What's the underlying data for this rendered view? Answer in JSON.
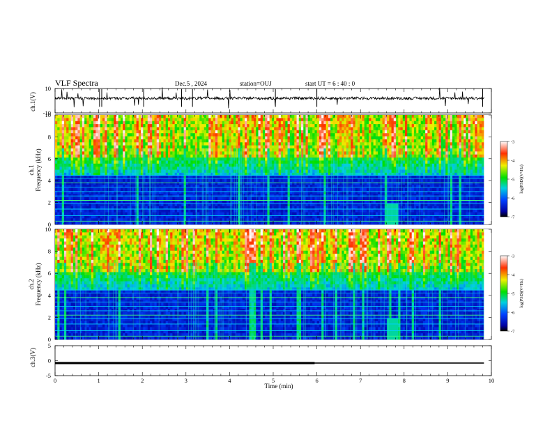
{
  "header": {
    "title": "VLF Spectra",
    "date": "Dec.5 , 2024",
    "station": "station=OUJ",
    "start": "start  UT  =  6 : 40 : 0"
  },
  "chart_data": [
    {
      "type": "line",
      "name": "waveform-ch1",
      "ylabel": "ch.1(V)",
      "ylim": [
        -10,
        10
      ],
      "yticks": [
        "10",
        "-10"
      ],
      "xlim": [
        0,
        10
      ],
      "trace": "noisy baseline near +2 V with intermittent impulsive spikes",
      "baseline": 2
    },
    {
      "type": "heatmap",
      "name": "spectrogram-ch1",
      "ylabel": "ch.1\nFrequency (kHz)",
      "ylim": [
        0,
        10
      ],
      "yticks": [
        "0",
        "2",
        "4",
        "6",
        "8",
        "10"
      ],
      "xlim": [
        0,
        9.83
      ],
      "colorbar": {
        "label": "log(PSD)(V²/Hz)",
        "range": [
          -7,
          -3
        ],
        "ticks": [
          "-3",
          "-4",
          "-5",
          "-6",
          "-7"
        ]
      }
    },
    {
      "type": "heatmap",
      "name": "spectrogram-ch2",
      "ylabel": "ch.2\nFrequency (kHz)",
      "ylim": [
        0,
        10
      ],
      "yticks": [
        "0",
        "2",
        "4",
        "6",
        "8",
        "10"
      ],
      "xlim": [
        0,
        9.83
      ],
      "colorbar": {
        "label": "log(PSD)(V²/Hz)",
        "range": [
          -7,
          -3
        ],
        "ticks": [
          "-3",
          "-4",
          "-5",
          "-6",
          "-7"
        ]
      }
    },
    {
      "type": "line",
      "name": "waveform-ch3",
      "ylabel": "ch.3(V)",
      "ylim": [
        -5,
        5
      ],
      "yticks": [
        "5",
        "0",
        "-5"
      ],
      "xlim": [
        0,
        10
      ],
      "segments": [
        {
          "x": [
            0,
            5.95
          ],
          "y": -0.8,
          "weight": "thick"
        },
        {
          "x": [
            5.95,
            9.83
          ],
          "y": -0.8,
          "weight": "thin"
        }
      ]
    }
  ],
  "xaxis": {
    "label": "Time (min)",
    "ticks": [
      "0",
      "1",
      "2",
      "3",
      "4",
      "5",
      "6",
      "7",
      "8",
      "9",
      "10"
    ]
  }
}
